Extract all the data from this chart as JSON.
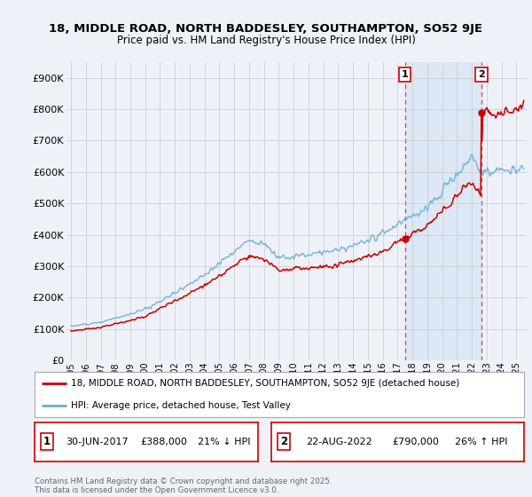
{
  "title_line1": "18, MIDDLE ROAD, NORTH BADDESLEY, SOUTHAMPTON, SO52 9JE",
  "title_line2": "Price paid vs. HM Land Registry's House Price Index (HPI)",
  "ylim": [
    0,
    950000
  ],
  "ytick_labels": [
    "£0",
    "£100K",
    "£200K",
    "£300K",
    "£400K",
    "£500K",
    "£600K",
    "£700K",
    "£800K",
    "£900K"
  ],
  "ytick_values": [
    0,
    100000,
    200000,
    300000,
    400000,
    500000,
    600000,
    700000,
    800000,
    900000
  ],
  "x_start_year": 1995,
  "x_end_year": 2025,
  "hpi_color": "#6aaed6",
  "price_color": "#cc0000",
  "sale1_x": 2017.5,
  "sale1_price": 388000,
  "sale1_date": "30-JUN-2017",
  "sale1_hpi_diff": "21% ↓ HPI",
  "sale2_x": 2022.65,
  "sale2_price": 790000,
  "sale2_date": "22-AUG-2022",
  "sale2_hpi_diff": "26% ↑ HPI",
  "legend_line1": "18, MIDDLE ROAD, NORTH BADDESLEY, SOUTHAMPTON, SO52 9JE (detached house)",
  "legend_line2": "HPI: Average price, detached house, Test Valley",
  "footer": "Contains HM Land Registry data © Crown copyright and database right 2025.\nThis data is licensed under the Open Government Licence v3.0.",
  "background_color": "#eef2f8",
  "plot_bg_color": "#eef2f8",
  "shade_color": "#dce8f5",
  "grid_color": "#c8c8c8"
}
